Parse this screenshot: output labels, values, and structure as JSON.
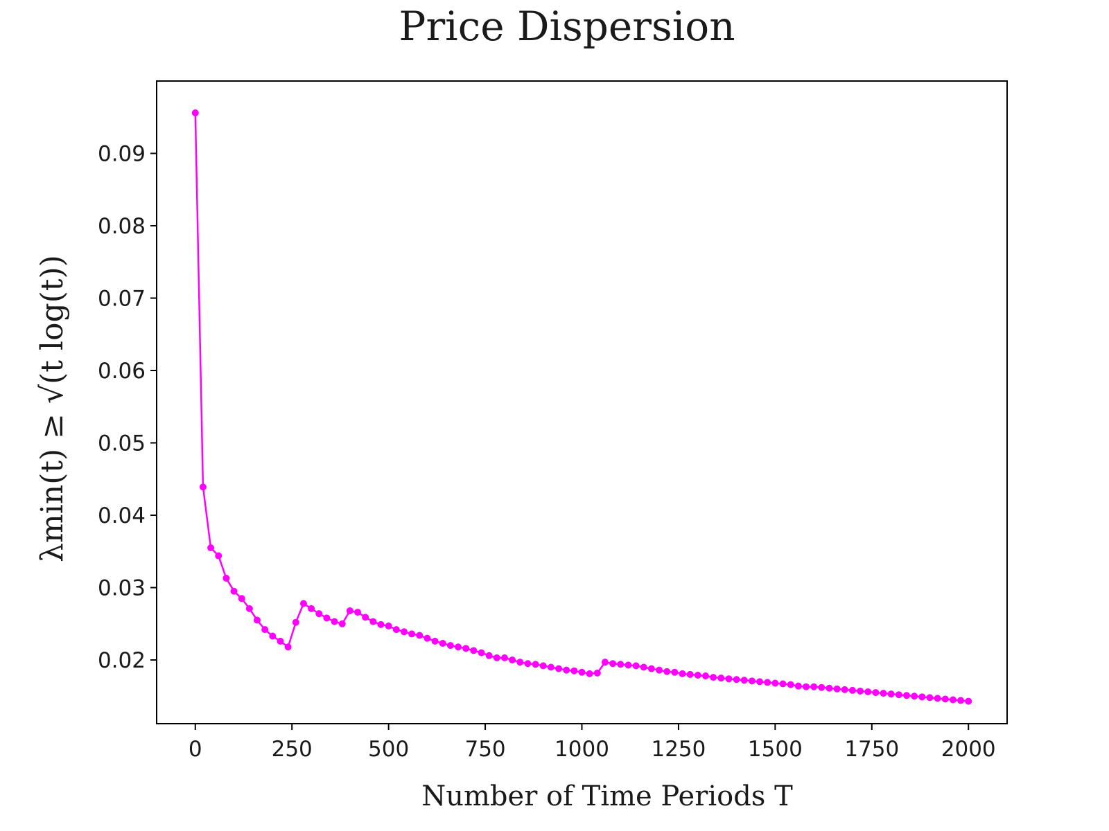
{
  "colors": {
    "series": "#ff00ff",
    "axes": "#000000",
    "text": "#1a1a1a"
  },
  "chart_data": {
    "type": "line",
    "title": "Price Dispersion",
    "xlabel": "Number of Time Periods T",
    "ylabel": "λmin(t) ≥ √(t log(t))",
    "xlim": [
      -100,
      2100
    ],
    "ylim": [
      0.0112,
      0.1
    ],
    "xticks": [
      0,
      250,
      500,
      750,
      1000,
      1250,
      1500,
      1750,
      2000
    ],
    "xtick_labels": [
      "0",
      "250",
      "500",
      "750",
      "1000",
      "1250",
      "1500",
      "1750",
      "2000"
    ],
    "yticks": [
      0.02,
      0.03,
      0.04,
      0.05,
      0.06,
      0.07,
      0.08,
      0.09
    ],
    "ytick_labels": [
      "0.02",
      "0.03",
      "0.04",
      "0.05",
      "0.06",
      "0.07",
      "0.08",
      "0.09"
    ],
    "grid": false,
    "marker": "circle",
    "series": [
      {
        "x": [
          0,
          20,
          40,
          60,
          80,
          100,
          120,
          140,
          160,
          180,
          200,
          220,
          240,
          260,
          280,
          300,
          320,
          340,
          360,
          380,
          400,
          420,
          440,
          460,
          480,
          500,
          520,
          540,
          560,
          580,
          600,
          620,
          640,
          660,
          680,
          700,
          720,
          740,
          760,
          780,
          800,
          820,
          840,
          860,
          880,
          900,
          920,
          940,
          960,
          980,
          1000,
          1020,
          1040,
          1060,
          1080,
          1100,
          1120,
          1140,
          1160,
          1180,
          1200,
          1220,
          1240,
          1260,
          1280,
          1300,
          1320,
          1340,
          1360,
          1380,
          1400,
          1420,
          1440,
          1460,
          1480,
          1500,
          1520,
          1540,
          1560,
          1580,
          1600,
          1620,
          1640,
          1660,
          1680,
          1700,
          1720,
          1740,
          1760,
          1780,
          1800,
          1820,
          1840,
          1860,
          1880,
          1900,
          1920,
          1940,
          1960,
          1980,
          2000
        ],
        "values": [
          0.0956,
          0.0439,
          0.0355,
          0.0344,
          0.0313,
          0.0295,
          0.0285,
          0.0271,
          0.0255,
          0.0242,
          0.0233,
          0.0226,
          0.0218,
          0.0252,
          0.0278,
          0.0271,
          0.0264,
          0.0258,
          0.0253,
          0.025,
          0.0268,
          0.0266,
          0.0259,
          0.0253,
          0.0249,
          0.0247,
          0.0242,
          0.0239,
          0.0236,
          0.0234,
          0.023,
          0.0226,
          0.0223,
          0.022,
          0.0218,
          0.0216,
          0.0213,
          0.021,
          0.0206,
          0.0203,
          0.0203,
          0.02,
          0.0197,
          0.0195,
          0.0194,
          0.0192,
          0.019,
          0.0188,
          0.0186,
          0.0185,
          0.0183,
          0.0181,
          0.0182,
          0.0197,
          0.0195,
          0.0194,
          0.0193,
          0.0192,
          0.019,
          0.0188,
          0.0186,
          0.0184,
          0.0183,
          0.0181,
          0.018,
          0.0179,
          0.0178,
          0.0176,
          0.0175,
          0.0174,
          0.0173,
          0.0172,
          0.0171,
          0.017,
          0.0169,
          0.0168,
          0.0167,
          0.0166,
          0.0164,
          0.0163,
          0.0163,
          0.0162,
          0.0161,
          0.016,
          0.0159,
          0.0158,
          0.0157,
          0.0156,
          0.0155,
          0.0154,
          0.0153,
          0.0152,
          0.0151,
          0.015,
          0.0149,
          0.0148,
          0.0147,
          0.0146,
          0.0145,
          0.0144,
          0.0143
        ]
      }
    ]
  }
}
